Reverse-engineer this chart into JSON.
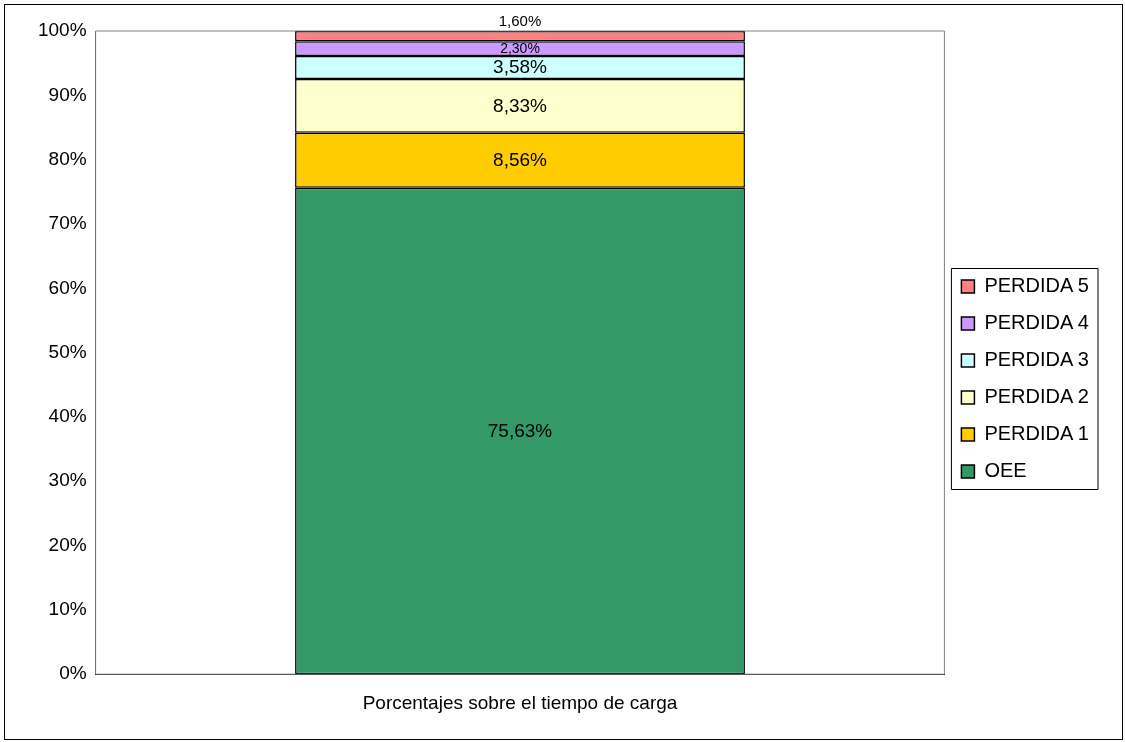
{
  "chart_data": {
    "type": "bar",
    "stacked": true,
    "categories": [
      "Porcentajes sobre el tiempo de carga"
    ],
    "series": [
      {
        "name": "OEE",
        "color": "#339966",
        "values": [
          75.63
        ],
        "value_labels": [
          "75,63%"
        ]
      },
      {
        "name": "PERDIDA 1",
        "color": "#ffcc00",
        "values": [
          8.56
        ],
        "value_labels": [
          "8,56%"
        ]
      },
      {
        "name": "PERDIDA 2",
        "color": "#ffffcc",
        "values": [
          8.33
        ],
        "value_labels": [
          "8,33%"
        ]
      },
      {
        "name": "PERDIDA 3",
        "color": "#ccffff",
        "values": [
          3.58
        ],
        "value_labels": [
          "3,58%"
        ]
      },
      {
        "name": "PERDIDA 4",
        "color": "#cc99ff",
        "values": [
          2.3
        ],
        "value_labels": [
          "2,30%"
        ]
      },
      {
        "name": "PERDIDA 5",
        "color": "#ff8080",
        "values": [
          1.6
        ],
        "value_labels": [
          "1,60%"
        ]
      }
    ],
    "ylim": [
      0,
      100
    ],
    "yticks": [
      {
        "value": 0,
        "label": "0%"
      },
      {
        "value": 10,
        "label": "10%"
      },
      {
        "value": 20,
        "label": "20%"
      },
      {
        "value": 30,
        "label": "30%"
      },
      {
        "value": 40,
        "label": "40%"
      },
      {
        "value": 50,
        "label": "50%"
      },
      {
        "value": 60,
        "label": "60%"
      },
      {
        "value": 70,
        "label": "70%"
      },
      {
        "value": 80,
        "label": "80%"
      },
      {
        "value": 90,
        "label": "90%"
      },
      {
        "value": 100,
        "label": "100%"
      }
    ],
    "grid": false,
    "legend": "right"
  }
}
